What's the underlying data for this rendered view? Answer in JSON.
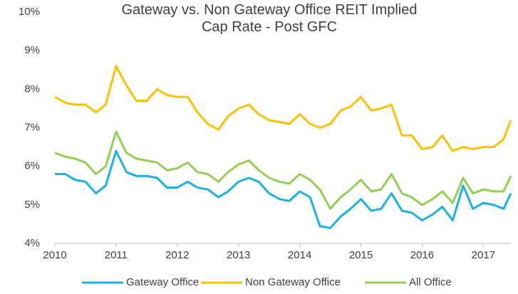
{
  "chart_data": {
    "type": "line",
    "title": "Gateway vs. Non Gateway Office REIT Implied Cap Rate - Post GFC",
    "x": [
      2010,
      2010.17,
      2010.33,
      2010.5,
      2010.67,
      2010.83,
      2011,
      2011.17,
      2011.33,
      2011.5,
      2011.67,
      2011.83,
      2012,
      2012.17,
      2012.33,
      2012.5,
      2012.67,
      2012.83,
      2013,
      2013.17,
      2013.33,
      2013.5,
      2013.67,
      2013.83,
      2014,
      2014.17,
      2014.33,
      2014.5,
      2014.67,
      2014.83,
      2015,
      2015.17,
      2015.33,
      2015.5,
      2015.67,
      2015.83,
      2016,
      2016.17,
      2016.33,
      2016.5,
      2016.67,
      2016.83,
      2017,
      2017.17,
      2017.33,
      2017.45
    ],
    "series": [
      {
        "name": "Gateway Office",
        "color": "#1ab0e8",
        "values": [
          5.8,
          5.8,
          5.65,
          5.6,
          5.3,
          5.5,
          6.4,
          5.85,
          5.75,
          5.75,
          5.7,
          5.45,
          5.45,
          5.6,
          5.45,
          5.4,
          5.2,
          5.35,
          5.6,
          5.7,
          5.6,
          5.3,
          5.15,
          5.1,
          5.35,
          5.2,
          4.45,
          4.4,
          4.7,
          4.9,
          5.15,
          4.85,
          4.9,
          5.3,
          4.85,
          4.8,
          4.6,
          4.75,
          4.95,
          4.6,
          5.5,
          4.9,
          5.05,
          5.0,
          4.9,
          5.3
        ]
      },
      {
        "name": "Non Gateway Office",
        "color": "#ffc000",
        "values": [
          7.8,
          7.65,
          7.6,
          7.6,
          7.4,
          7.6,
          8.6,
          8.1,
          7.7,
          7.7,
          8.0,
          7.85,
          7.8,
          7.8,
          7.4,
          7.1,
          6.95,
          7.3,
          7.5,
          7.6,
          7.35,
          7.2,
          7.15,
          7.1,
          7.35,
          7.1,
          7.0,
          7.1,
          7.45,
          7.55,
          7.8,
          7.45,
          7.5,
          7.6,
          6.8,
          6.8,
          6.45,
          6.5,
          6.8,
          6.4,
          6.5,
          6.45,
          6.5,
          6.5,
          6.7,
          7.2
        ]
      },
      {
        "name": "All Office",
        "color": "#92d050",
        "values": [
          6.35,
          6.25,
          6.2,
          6.1,
          5.8,
          6.0,
          6.9,
          6.35,
          6.2,
          6.15,
          6.1,
          5.9,
          5.95,
          6.1,
          5.85,
          5.8,
          5.6,
          5.85,
          6.05,
          6.15,
          5.9,
          5.7,
          5.6,
          5.55,
          5.8,
          5.65,
          5.4,
          4.9,
          5.2,
          5.4,
          5.65,
          5.35,
          5.4,
          5.8,
          5.3,
          5.2,
          5.0,
          5.15,
          5.35,
          5.05,
          5.7,
          5.3,
          5.4,
          5.35,
          5.35,
          5.75
        ]
      }
    ],
    "xlim": [
      2010,
      2017.45
    ],
    "xticks": [
      2010,
      2011,
      2012,
      2013,
      2014,
      2015,
      2016,
      2017
    ],
    "ylim": [
      4,
      10
    ],
    "yticks": [
      {
        "value": 4,
        "label": "4%"
      },
      {
        "value": 5,
        "label": "5%"
      },
      {
        "value": 6,
        "label": "6%"
      },
      {
        "value": 7,
        "label": "7%"
      },
      {
        "value": 8,
        "label": "8%"
      },
      {
        "value": 9,
        "label": "9%"
      },
      {
        "value": 10,
        "label": "10%"
      }
    ],
    "legend": "bottom"
  }
}
